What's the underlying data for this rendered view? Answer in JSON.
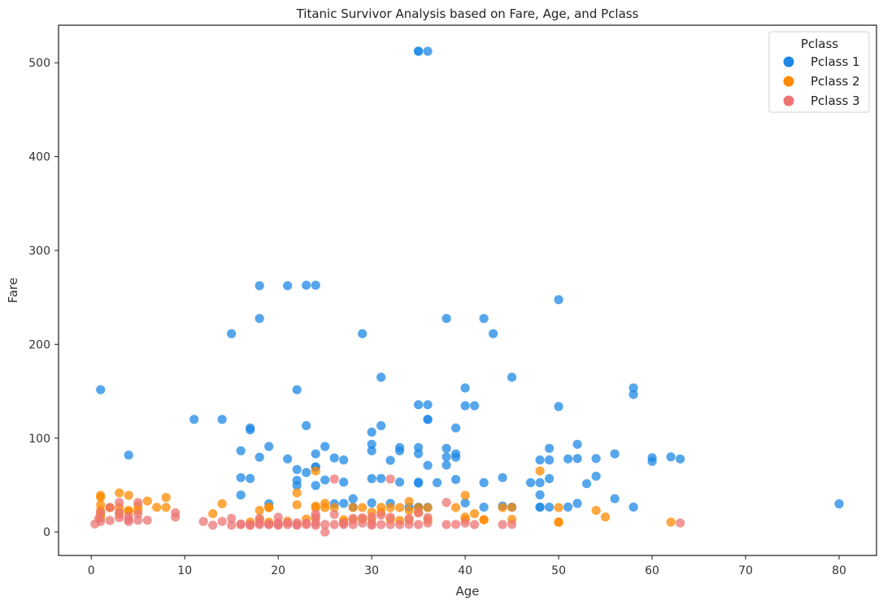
{
  "chart_data": {
    "type": "scatter",
    "title": "Titanic Survivor Analysis based on Fare, Age, and Pclass",
    "xlabel": "Age",
    "ylabel": "Fare",
    "xlim": [
      -3.5,
      84
    ],
    "ylim": [
      -25,
      540
    ],
    "xticks": [
      0,
      10,
      20,
      30,
      40,
      50,
      60,
      70,
      80
    ],
    "yticks": [
      0,
      100,
      200,
      300,
      400,
      500
    ],
    "grid": false,
    "legend": {
      "title": "Pclass",
      "position": "top-right"
    },
    "series": [
      {
        "name": "Pclass 1",
        "color": "#1e88e5",
        "points": [
          [
            1,
            151.6
          ],
          [
            4,
            81.9
          ],
          [
            11,
            120
          ],
          [
            14,
            120
          ],
          [
            15,
            211.3
          ],
          [
            16,
            86.5
          ],
          [
            16,
            57.9
          ],
          [
            16,
            39.4
          ],
          [
            17,
            110.9
          ],
          [
            17,
            108.9
          ],
          [
            17,
            57
          ],
          [
            18,
            262.4
          ],
          [
            18,
            227.5
          ],
          [
            18,
            79.7
          ],
          [
            19,
            91.1
          ],
          [
            19,
            30
          ],
          [
            21,
            262.4
          ],
          [
            21,
            77.9
          ],
          [
            22,
            151.6
          ],
          [
            22,
            66.6
          ],
          [
            22,
            55
          ],
          [
            22,
            49.5
          ],
          [
            23,
            263
          ],
          [
            23,
            113.3
          ],
          [
            23,
            63.4
          ],
          [
            24,
            263
          ],
          [
            24,
            83.2
          ],
          [
            24,
            69.3
          ],
          [
            24,
            69.3
          ],
          [
            24,
            49.5
          ],
          [
            25,
            91.1
          ],
          [
            25,
            55.4
          ],
          [
            26,
            78.9
          ],
          [
            26,
            30
          ],
          [
            27,
            76.7
          ],
          [
            27,
            53.1
          ],
          [
            27,
            30.5
          ],
          [
            28,
            35.5
          ],
          [
            28,
            26.5
          ],
          [
            29,
            211.3
          ],
          [
            30,
            106.4
          ],
          [
            30,
            93.5
          ],
          [
            30,
            86.5
          ],
          [
            30,
            56.9
          ],
          [
            30,
            31
          ],
          [
            31,
            164.9
          ],
          [
            31,
            113.3
          ],
          [
            31,
            57
          ],
          [
            32,
            76.3
          ],
          [
            32,
            30.5
          ],
          [
            33,
            90
          ],
          [
            33,
            86.5
          ],
          [
            33,
            53.1
          ],
          [
            34,
            26.5
          ],
          [
            35,
            512.3
          ],
          [
            35,
            512.3
          ],
          [
            35,
            135.6
          ],
          [
            35,
            90
          ],
          [
            35,
            83.5
          ],
          [
            35,
            53.1
          ],
          [
            35,
            52
          ],
          [
            35,
            26.3
          ],
          [
            35,
            26.3
          ],
          [
            36,
            512.3
          ],
          [
            36,
            135.6
          ],
          [
            36,
            120
          ],
          [
            36,
            120
          ],
          [
            36,
            71
          ],
          [
            36,
            26.3
          ],
          [
            37,
            52.6
          ],
          [
            38,
            227.5
          ],
          [
            38,
            89.1
          ],
          [
            38,
            80
          ],
          [
            38,
            71.3
          ],
          [
            39,
            110.9
          ],
          [
            39,
            83.2
          ],
          [
            39,
            79.7
          ],
          [
            39,
            55.9
          ],
          [
            40,
            153.5
          ],
          [
            40,
            134.5
          ],
          [
            40,
            31
          ],
          [
            41,
            134.5
          ],
          [
            42,
            227.5
          ],
          [
            42,
            52.6
          ],
          [
            42,
            26.5
          ],
          [
            43,
            211.3
          ],
          [
            44,
            57.9
          ],
          [
            44,
            27.7
          ],
          [
            45,
            164.9
          ],
          [
            45,
            26.5
          ],
          [
            47,
            52.6
          ],
          [
            48,
            76.7
          ],
          [
            48,
            52.6
          ],
          [
            48,
            39.6
          ],
          [
            48,
            26.5
          ],
          [
            48,
            26.5
          ],
          [
            49,
            89.1
          ],
          [
            49,
            76.7
          ],
          [
            49,
            56.9
          ],
          [
            49,
            26.5
          ],
          [
            50,
            247.5
          ],
          [
            50,
            133.7
          ],
          [
            51,
            77.9
          ],
          [
            51,
            26.6
          ],
          [
            52,
            93.5
          ],
          [
            52,
            78.3
          ],
          [
            52,
            30.5
          ],
          [
            53,
            51.5
          ],
          [
            54,
            78.3
          ],
          [
            54,
            59.4
          ],
          [
            56,
            83.2
          ],
          [
            56,
            35.5
          ],
          [
            58,
            153.5
          ],
          [
            58,
            146.5
          ],
          [
            58,
            26.6
          ],
          [
            60,
            79.2
          ],
          [
            60,
            75.3
          ],
          [
            62,
            80
          ],
          [
            63,
            77.9
          ],
          [
            80,
            30
          ]
        ]
      },
      {
        "name": "Pclass 2",
        "color": "#ff8a00",
        "points": [
          [
            1,
            39
          ],
          [
            1,
            37
          ],
          [
            1,
            29
          ],
          [
            1,
            23
          ],
          [
            1,
            18.8
          ],
          [
            1,
            15
          ],
          [
            2,
            26
          ],
          [
            2,
            26
          ],
          [
            3,
            41.6
          ],
          [
            3,
            26
          ],
          [
            3,
            18.8
          ],
          [
            4,
            39
          ],
          [
            4,
            23
          ],
          [
            4,
            22
          ],
          [
            5,
            27.8
          ],
          [
            5,
            23
          ],
          [
            6,
            33
          ],
          [
            7,
            26.3
          ],
          [
            8,
            36.8
          ],
          [
            8,
            26.3
          ],
          [
            13,
            19.5
          ],
          [
            14,
            30.1
          ],
          [
            17,
            10.5
          ],
          [
            18,
            23
          ],
          [
            18,
            13
          ],
          [
            19,
            26
          ],
          [
            19,
            26.3
          ],
          [
            19,
            10.5
          ],
          [
            21,
            11.5
          ],
          [
            22,
            41.6
          ],
          [
            22,
            29
          ],
          [
            23,
            13.8
          ],
          [
            24,
            65
          ],
          [
            24,
            27.7
          ],
          [
            24,
            26
          ],
          [
            24,
            14.5
          ],
          [
            25,
            26
          ],
          [
            25,
            30.5
          ],
          [
            26,
            26
          ],
          [
            27,
            13
          ],
          [
            27,
            10.5
          ],
          [
            28,
            26
          ],
          [
            28,
            13
          ],
          [
            29,
            26
          ],
          [
            29,
            13.9
          ],
          [
            30,
            21
          ],
          [
            30,
            13
          ],
          [
            31,
            26.3
          ],
          [
            31,
            21
          ],
          [
            32,
            26
          ],
          [
            32,
            13.5
          ],
          [
            33,
            26
          ],
          [
            33,
            12.3
          ],
          [
            34,
            32.5
          ],
          [
            34,
            23
          ],
          [
            34,
            13
          ],
          [
            35,
            26
          ],
          [
            35,
            21
          ],
          [
            36,
            26
          ],
          [
            36,
            13
          ],
          [
            39,
            26
          ],
          [
            40,
            39
          ],
          [
            40,
            15.8
          ],
          [
            40,
            13
          ],
          [
            41,
            19.5
          ],
          [
            42,
            13
          ],
          [
            42,
            13
          ],
          [
            44,
            26
          ],
          [
            45,
            26.3
          ],
          [
            45,
            13.5
          ],
          [
            48,
            65
          ],
          [
            50,
            26
          ],
          [
            50,
            10.5
          ],
          [
            50,
            10.5
          ],
          [
            54,
            23
          ],
          [
            55,
            16
          ],
          [
            62,
            10.5
          ]
        ]
      },
      {
        "name": "Pclass 3",
        "color": "#ec7474",
        "points": [
          [
            0.4,
            8.5
          ],
          [
            0.8,
            14.4
          ],
          [
            1,
            20.6
          ],
          [
            1,
            11.1
          ],
          [
            2,
            12.3
          ],
          [
            2,
            26
          ],
          [
            3,
            31.4
          ],
          [
            3,
            21.1
          ],
          [
            3,
            15.2
          ],
          [
            4,
            16.7
          ],
          [
            4,
            13.4
          ],
          [
            4,
            11.1
          ],
          [
            5,
            31.4
          ],
          [
            5,
            19.3
          ],
          [
            5,
            12.5
          ],
          [
            6,
            12.5
          ],
          [
            9,
            20.5
          ],
          [
            9,
            15.9
          ],
          [
            12,
            11.2
          ],
          [
            13,
            7.2
          ],
          [
            14,
            11.2
          ],
          [
            15,
            14.5
          ],
          [
            15,
            7.2
          ],
          [
            16,
            8.5
          ],
          [
            16,
            7.8
          ],
          [
            17,
            7.9
          ],
          [
            17,
            7.1
          ],
          [
            18,
            14.5
          ],
          [
            18,
            9.5
          ],
          [
            18,
            7.8
          ],
          [
            19,
            8.1
          ],
          [
            19,
            7.9
          ],
          [
            20,
            15.7
          ],
          [
            20,
            9.8
          ],
          [
            20,
            7.9
          ],
          [
            20,
            7.2
          ],
          [
            21,
            9.8
          ],
          [
            21,
            7.9
          ],
          [
            22,
            9.8
          ],
          [
            22,
            7.8
          ],
          [
            22,
            7.2
          ],
          [
            23,
            9.2
          ],
          [
            23,
            7.9
          ],
          [
            24,
            19.3
          ],
          [
            24,
            16.1
          ],
          [
            24,
            9.5
          ],
          [
            24,
            7.1
          ],
          [
            25,
            7.9
          ],
          [
            25,
            0
          ],
          [
            26,
            56.5
          ],
          [
            26,
            18.8
          ],
          [
            26,
            7.9
          ],
          [
            27,
            9.5
          ],
          [
            27,
            7.9
          ],
          [
            28,
            14.5
          ],
          [
            28,
            7.9
          ],
          [
            29,
            15.2
          ],
          [
            29,
            9.5
          ],
          [
            30,
            16.1
          ],
          [
            30,
            8.7
          ],
          [
            30,
            7.2
          ],
          [
            31,
            18
          ],
          [
            31,
            7.8
          ],
          [
            32,
            56.5
          ],
          [
            32,
            15.8
          ],
          [
            32,
            7.9
          ],
          [
            33,
            7.9
          ],
          [
            34,
            14.4
          ],
          [
            34,
            8.1
          ],
          [
            35,
            20.2
          ],
          [
            35,
            7.9
          ],
          [
            36,
            15.5
          ],
          [
            36,
            9.5
          ],
          [
            38,
            31.4
          ],
          [
            38,
            7.9
          ],
          [
            39,
            8.1
          ],
          [
            40,
            9.5
          ],
          [
            41,
            7.9
          ],
          [
            44,
            7.9
          ],
          [
            45,
            8.1
          ],
          [
            63,
            9.6
          ]
        ]
      }
    ]
  }
}
